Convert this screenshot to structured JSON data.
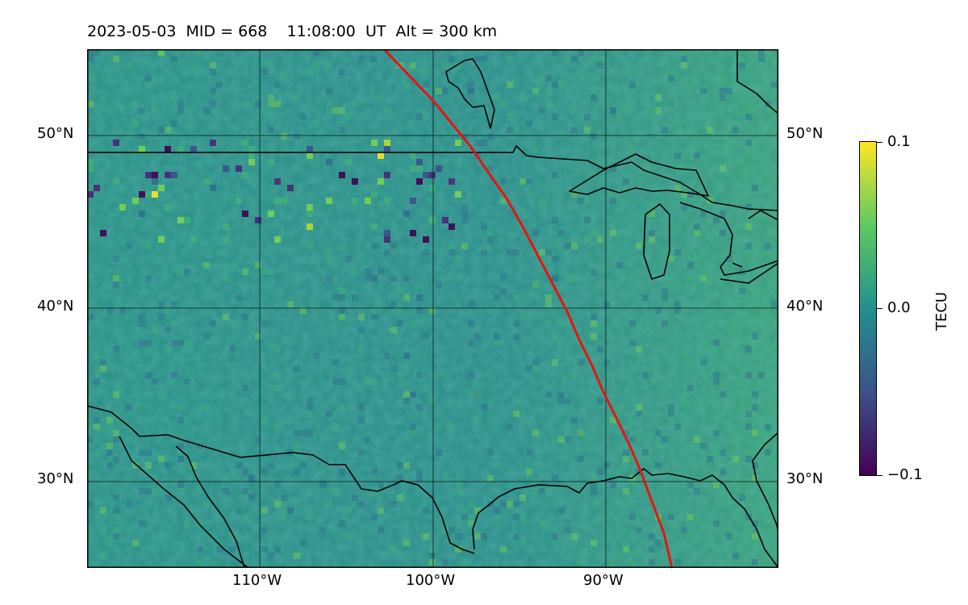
{
  "title": "2023-05-03  MID = 668    11:08:00  UT  Alt = 300 km",
  "map": {
    "lon_range": [
      -120,
      -80
    ],
    "lat_range": [
      25,
      55
    ],
    "lat_labels": [
      "50°N",
      "40°N",
      "30°N"
    ],
    "lon_labels": [
      "110°W",
      "100°W",
      "90°W"
    ],
    "terminator_color": "#e8140f",
    "coastline_color": "#000000",
    "gridline_color": "#000000"
  },
  "colorbar": {
    "label": "TECU",
    "max_label": "0.1",
    "mid_label": "0.0",
    "min_label": "−0.1",
    "colormap": [
      "#440154",
      "#3b528b",
      "#21918c",
      "#5ec962",
      "#fde725"
    ]
  }
}
